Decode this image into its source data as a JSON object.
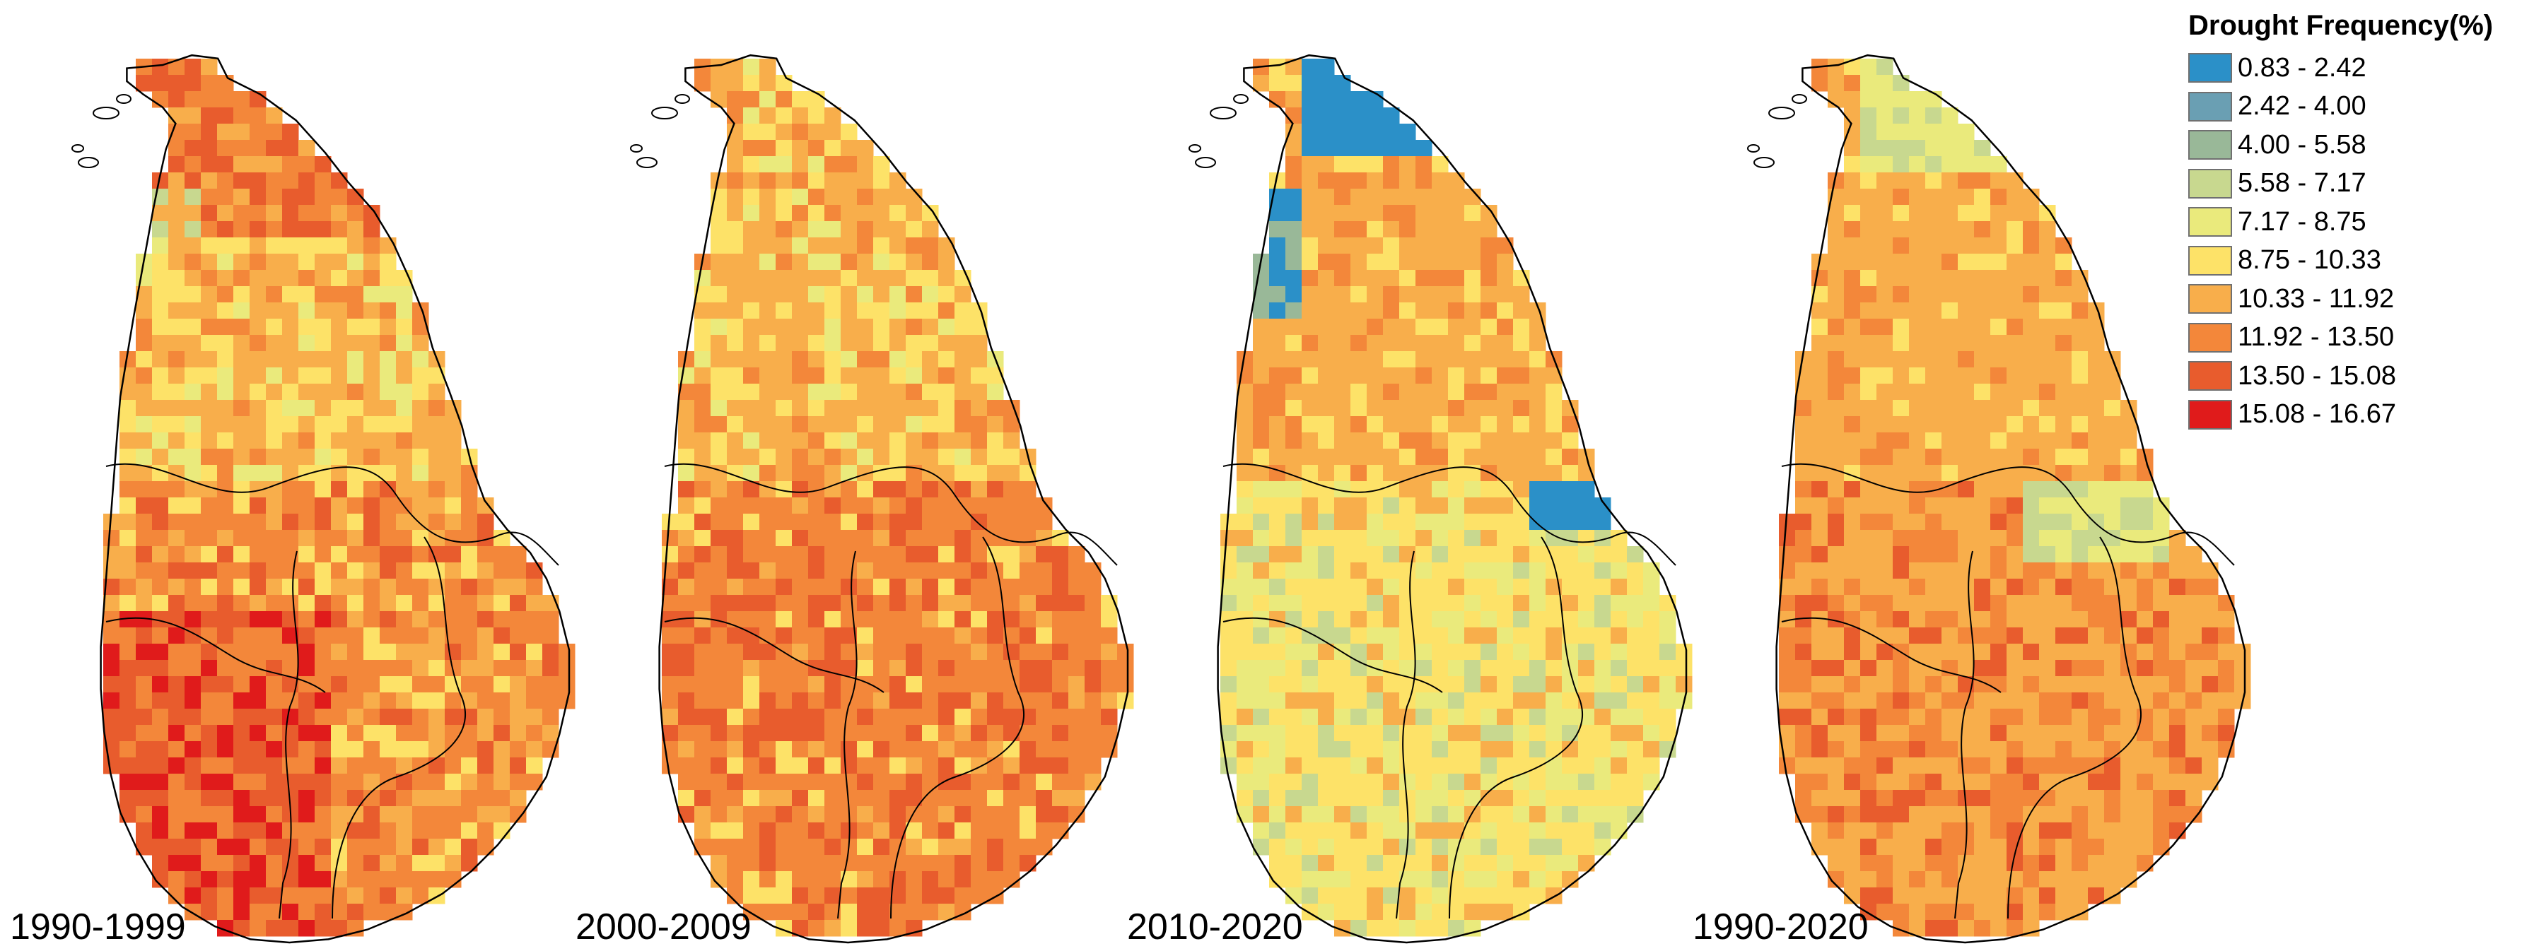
{
  "figure": {
    "legend": {
      "title": "Drought Frequency(%)",
      "classes": [
        {
          "label": "0.83 - 2.42",
          "color": "#2b90c8"
        },
        {
          "label": "2.42 - 4.00",
          "color": "#6a9fb3"
        },
        {
          "label": "4.00 - 5.58",
          "color": "#99b898"
        },
        {
          "label": "5.58 - 7.17",
          "color": "#c8d88f"
        },
        {
          "label": "7.17 - 8.75",
          "color": "#eaea7c"
        },
        {
          "label": "8.75 - 10.33",
          "color": "#fde268"
        },
        {
          "label": "10.33 - 11.92",
          "color": "#f8ae4b"
        },
        {
          "label": "11.92 - 13.50",
          "color": "#f3873a"
        },
        {
          "label": "13.50 - 15.08",
          "color": "#e85c2d"
        },
        {
          "label": "15.08 - 16.67",
          "color": "#e01b1b"
        }
      ]
    },
    "panels": [
      {
        "label": "1990-1999",
        "dominant_class": 6
      },
      {
        "label": "2000-2009",
        "dominant_class": 7
      },
      {
        "label": "2010-2020",
        "dominant_class": 6
      },
      {
        "label": "1990-2020",
        "dominant_class": 6
      }
    ]
  }
}
